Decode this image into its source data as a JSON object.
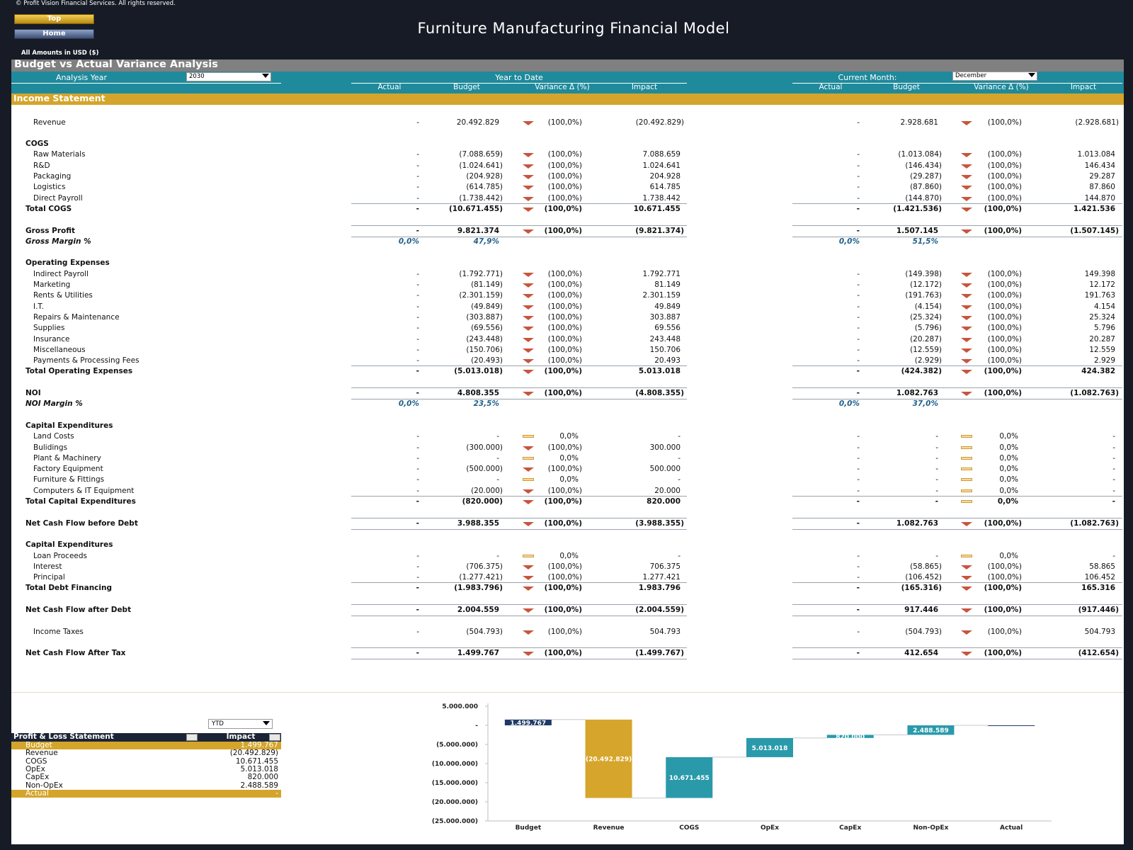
{
  "header": {
    "copyright": "© Profit Vision Financial Services. All rights reserved.",
    "buttons": [
      "Top",
      "Home"
    ],
    "title": "Furniture Manufacturing Financial Model",
    "currency_note": "All Amounts in  USD ($)"
  },
  "report": {
    "title": "Budget vs Actual Variance Analysis",
    "analysis_year_label": "Analysis Year",
    "analysis_year": "2030",
    "ytd_label": "Year to Date",
    "current_month_label": "Current Month:",
    "current_month": "December",
    "columns": [
      "Actual",
      "Budget",
      "Variance Δ  (%)",
      "Impact"
    ],
    "section": "Income Statement"
  },
  "rows": [
    {
      "label": "Revenue",
      "style": "item",
      "ytd": [
        "-",
        "20.492.829",
        "(100,0%)",
        "(20.492.829)"
      ],
      "month": [
        "-",
        "2.928.681",
        "(100,0%)",
        "(2.928.681)"
      ]
    },
    {
      "label": "COGS",
      "style": "header"
    },
    {
      "label": "Raw Materials",
      "style": "item",
      "ytd": [
        "-",
        "(7.088.659)",
        "(100,0%)",
        "7.088.659"
      ],
      "month": [
        "-",
        "(1.013.084)",
        "(100,0%)",
        "1.013.084"
      ]
    },
    {
      "label": "R&D",
      "style": "item",
      "ytd": [
        "-",
        "(1.024.641)",
        "(100,0%)",
        "1.024.641"
      ],
      "month": [
        "-",
        "(146.434)",
        "(100,0%)",
        "146.434"
      ]
    },
    {
      "label": "Packaging",
      "style": "item",
      "ytd": [
        "-",
        "(204.928)",
        "(100,0%)",
        "204.928"
      ],
      "month": [
        "-",
        "(29.287)",
        "(100,0%)",
        "29.287"
      ]
    },
    {
      "label": "Logistics",
      "style": "item",
      "ytd": [
        "-",
        "(614.785)",
        "(100,0%)",
        "614.785"
      ],
      "month": [
        "-",
        "(87.860)",
        "(100,0%)",
        "87.860"
      ]
    },
    {
      "label": "Direct Payroll",
      "style": "item",
      "ytd": [
        "-",
        "(1.738.442)",
        "(100,0%)",
        "1.738.442"
      ],
      "month": [
        "-",
        "(144.870)",
        "(100,0%)",
        "144.870"
      ]
    },
    {
      "label": "Total COGS",
      "style": "total",
      "ytd": [
        "-",
        "(10.671.455)",
        "(100,0%)",
        "10.671.455"
      ],
      "month": [
        "-",
        "(1.421.536)",
        "(100,0%)",
        "1.421.536"
      ]
    },
    {
      "label": "Gross Profit",
      "style": "result",
      "ytd": [
        "-",
        "9.821.374",
        "(100,0%)",
        "(9.821.374)"
      ],
      "month": [
        "-",
        "1.507.145",
        "(100,0%)",
        "(1.507.145)"
      ]
    },
    {
      "label": "Gross Margin %",
      "style": "margin",
      "ytd": [
        "0,0%",
        "47,9%",
        null,
        null
      ],
      "month": [
        "0,0%",
        "51,5%",
        null,
        null
      ]
    },
    {
      "label": "Operating Expenses",
      "style": "header"
    },
    {
      "label": "Indirect Payroll",
      "style": "item",
      "ytd": [
        "-",
        "(1.792.771)",
        "(100,0%)",
        "1.792.771"
      ],
      "month": [
        "-",
        "(149.398)",
        "(100,0%)",
        "149.398"
      ]
    },
    {
      "label": "Marketing",
      "style": "item",
      "ytd": [
        "-",
        "(81.149)",
        "(100,0%)",
        "81.149"
      ],
      "month": [
        "-",
        "(12.172)",
        "(100,0%)",
        "12.172"
      ]
    },
    {
      "label": "Rents & Utilities",
      "style": "item",
      "ytd": [
        "-",
        "(2.301.159)",
        "(100,0%)",
        "2.301.159"
      ],
      "month": [
        "-",
        "(191.763)",
        "(100,0%)",
        "191.763"
      ]
    },
    {
      "label": "I.T.",
      "style": "item",
      "ytd": [
        "-",
        "(49.849)",
        "(100,0%)",
        "49.849"
      ],
      "month": [
        "-",
        "(4.154)",
        "(100,0%)",
        "4.154"
      ]
    },
    {
      "label": "Repairs & Maintenance",
      "style": "item",
      "ytd": [
        "-",
        "(303.887)",
        "(100,0%)",
        "303.887"
      ],
      "month": [
        "-",
        "(25.324)",
        "(100,0%)",
        "25.324"
      ]
    },
    {
      "label": "Supplies",
      "style": "item",
      "ytd": [
        "-",
        "(69.556)",
        "(100,0%)",
        "69.556"
      ],
      "month": [
        "-",
        "(5.796)",
        "(100,0%)",
        "5.796"
      ]
    },
    {
      "label": "Insurance",
      "style": "item",
      "ytd": [
        "-",
        "(243.448)",
        "(100,0%)",
        "243.448"
      ],
      "month": [
        "-",
        "(20.287)",
        "(100,0%)",
        "20.287"
      ]
    },
    {
      "label": "Miscellaneous",
      "style": "item",
      "ytd": [
        "-",
        "(150.706)",
        "(100,0%)",
        "150.706"
      ],
      "month": [
        "-",
        "(12.559)",
        "(100,0%)",
        "12.559"
      ]
    },
    {
      "label": "Payments & Processing Fees",
      "style": "item",
      "ytd": [
        "-",
        "(20.493)",
        "(100,0%)",
        "20.493"
      ],
      "month": [
        "-",
        "(2.929)",
        "(100,0%)",
        "2.929"
      ]
    },
    {
      "label": "Total Operating Expenses",
      "style": "total",
      "ytd": [
        "-",
        "(5.013.018)",
        "(100,0%)",
        "5.013.018"
      ],
      "month": [
        "-",
        "(424.382)",
        "(100,0%)",
        "424.382"
      ]
    },
    {
      "label": "NOI",
      "style": "result",
      "ytd": [
        "-",
        "4.808.355",
        "(100,0%)",
        "(4.808.355)"
      ],
      "month": [
        "-",
        "1.082.763",
        "(100,0%)",
        "(1.082.763)"
      ]
    },
    {
      "label": "NOI Margin %",
      "style": "margin",
      "ytd": [
        "0,0%",
        "23,5%",
        null,
        null
      ],
      "month": [
        "0,0%",
        "37,0%",
        null,
        null
      ]
    },
    {
      "label": "Capital Expenditures",
      "style": "header"
    },
    {
      "label": "Land Costs",
      "style": "item",
      "ytd": [
        "-",
        "-",
        "0,0%",
        "-"
      ],
      "month": [
        "-",
        "-",
        "0,0%",
        "-"
      ]
    },
    {
      "label": "Bulidings",
      "style": "item",
      "ytd": [
        "-",
        "(300.000)",
        "(100,0%)",
        "300.000"
      ],
      "month": [
        "-",
        "-",
        "0,0%",
        "-"
      ]
    },
    {
      "label": "Plant & Machinery",
      "style": "item",
      "ytd": [
        "-",
        "-",
        "0,0%",
        "-"
      ],
      "month": [
        "-",
        "-",
        "0,0%",
        "-"
      ]
    },
    {
      "label": "Factory Equipment",
      "style": "item",
      "ytd": [
        "-",
        "(500.000)",
        "(100,0%)",
        "500.000"
      ],
      "month": [
        "-",
        "-",
        "0,0%",
        "-"
      ]
    },
    {
      "label": "Furniture & Fittings",
      "style": "item",
      "ytd": [
        "-",
        "-",
        "0,0%",
        "-"
      ],
      "month": [
        "-",
        "-",
        "0,0%",
        "-"
      ]
    },
    {
      "label": "Computers & IT Equipment",
      "style": "item",
      "ytd": [
        "-",
        "(20.000)",
        "(100,0%)",
        "20.000"
      ],
      "month": [
        "-",
        "-",
        "0,0%",
        "-"
      ]
    },
    {
      "label": "Total Capital Expenditures",
      "style": "total",
      "ytd": [
        "-",
        "(820.000)",
        "(100,0%)",
        "820.000"
      ],
      "month": [
        "-",
        "-",
        "0,0%",
        "-"
      ]
    },
    {
      "label": "Net Cash Flow before Debt",
      "style": "result",
      "ytd": [
        "-",
        "3.988.355",
        "(100,0%)",
        "(3.988.355)"
      ],
      "month": [
        "-",
        "1.082.763",
        "(100,0%)",
        "(1.082.763)"
      ]
    },
    {
      "label": "Capital Expenditures",
      "style": "header"
    },
    {
      "label": "Loan Proceeds",
      "style": "item",
      "ytd": [
        "-",
        "-",
        "0,0%",
        "-"
      ],
      "month": [
        "-",
        "-",
        "0,0%",
        "-"
      ]
    },
    {
      "label": "Interest",
      "style": "item",
      "ytd": [
        "-",
        "(706.375)",
        "(100,0%)",
        "706.375"
      ],
      "month": [
        "-",
        "(58.865)",
        "(100,0%)",
        "58.865"
      ]
    },
    {
      "label": "Principal",
      "style": "item",
      "ytd": [
        "-",
        "(1.277.421)",
        "(100,0%)",
        "1.277.421"
      ],
      "month": [
        "-",
        "(106.452)",
        "(100,0%)",
        "106.452"
      ]
    },
    {
      "label": "Total Debt Financing",
      "style": "total",
      "ytd": [
        "-",
        "(1.983.796)",
        "(100,0%)",
        "1.983.796"
      ],
      "month": [
        "-",
        "(165.316)",
        "(100,0%)",
        "165.316"
      ]
    },
    {
      "label": "Net Cash Flow after Debt",
      "style": "result",
      "ytd": [
        "-",
        "2.004.559",
        "(100,0%)",
        "(2.004.559)"
      ],
      "month": [
        "-",
        "917.446",
        "(100,0%)",
        "(917.446)"
      ]
    },
    {
      "label": "Income Taxes",
      "style": "item",
      "ytd": [
        "-",
        "(504.793)",
        "(100,0%)",
        "504.793"
      ],
      "month": [
        "-",
        "(504.793)",
        "(100,0%)",
        "504.793"
      ]
    },
    {
      "label": "Net Cash Flow After Tax",
      "style": "result",
      "ytd": [
        "-",
        "1.499.767",
        "(100,0%)",
        "(1.499.767)"
      ],
      "month": [
        "-",
        "412.654",
        "(100,0%)",
        "(412.654)"
      ]
    }
  ],
  "summary": {
    "period": "YTD",
    "headers": [
      "Profit & Loss Statement",
      "Impact"
    ],
    "rows": [
      [
        "Budget",
        "1.499.767"
      ],
      [
        "Revenue",
        "(20.492.829)"
      ],
      [
        "COGS",
        "10.671.455"
      ],
      [
        "OpEx",
        "5.013.018"
      ],
      [
        "CapEx",
        "820.000"
      ],
      [
        "Non-OpEx",
        "2.488.589"
      ],
      [
        "Actual",
        "-"
      ]
    ]
  },
  "chart_data": {
    "type": "waterfall",
    "categories": [
      "Budget",
      "Revenue",
      "COGS",
      "OpEx",
      "CapEx",
      "Non-OpEx",
      "Actual"
    ],
    "values": [
      1499767,
      -20492829,
      10671455,
      5013018,
      820000,
      2488589,
      0
    ],
    "value_labels": [
      "1.499.767",
      "(20.492.829)",
      "10.671.455",
      "5.013.018",
      "820.000",
      "2.488.589",
      null
    ],
    "colors": [
      "#1f3a68",
      "#d6a52b",
      "#2a9aab",
      "#2a9aab",
      "#2a9aab",
      "#2a9aab",
      "#1f3a68"
    ],
    "ylim": [
      -25000000,
      5000000
    ],
    "yticks": [
      {
        "value": 5000000,
        "label": "5.000.000"
      },
      {
        "value": 0,
        "label": "-"
      },
      {
        "value": -5000000,
        "label": "(5.000.000)"
      },
      {
        "value": -10000000,
        "label": "(10.000.000)"
      },
      {
        "value": -15000000,
        "label": "(15.000.000)"
      },
      {
        "value": -20000000,
        "label": "(20.000.000)"
      },
      {
        "value": -25000000,
        "label": "(25.000.000)"
      }
    ]
  }
}
